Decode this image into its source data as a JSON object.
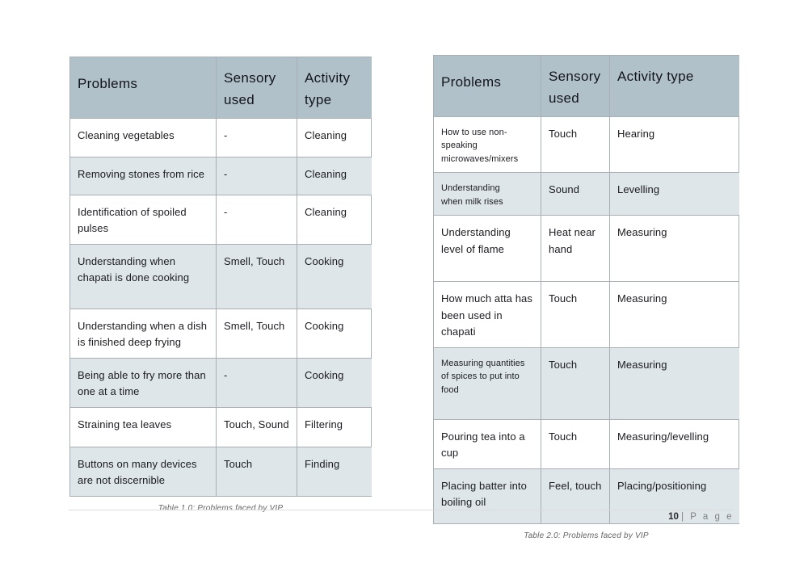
{
  "colors": {
    "header_bg": "#b0c1ca",
    "row_alt_bg": "#dee6ea",
    "table_border": "#a9b0b5",
    "caption_text": "#646464",
    "footer_gray": "#808080"
  },
  "tables": [
    {
      "caption": "Table 1.0: Problems faced by VIP",
      "headers": [
        "Problems",
        "Sensory\nused",
        "Activity\ntype"
      ],
      "rows": [
        [
          "Cleaning vegetables",
          "-",
          "Cleaning"
        ],
        [
          "Removing stones from rice",
          "-",
          "Cleaning"
        ],
        [
          "Identification of spoiled\npulses",
          "-",
          "Cleaning"
        ],
        [
          "Understanding when\nchapati is done cooking",
          "Smell, Touch",
          "Cooking"
        ],
        [
          "Understanding when a dish\nis finished deep frying",
          "Smell, Touch",
          "Cooking"
        ],
        [
          "Being able to fry more than\none at a time",
          "-",
          "Cooking"
        ],
        [
          "Straining tea leaves",
          "Touch, Sound",
          "Filtering"
        ],
        [
          "Buttons on many devices\nare not discernible",
          "Touch",
          "Finding"
        ]
      ]
    },
    {
      "caption": "Table 2.0: Problems faced by VIP",
      "headers": [
        "Problems",
        "Sensory\nused",
        "Activity type"
      ],
      "rows": [
        [
          "How to use non-\nspeaking\nmicrowaves/mixers",
          "Touch",
          "Hearing"
        ],
        [
          "Understanding\nwhen milk rises",
          "Sound",
          "Levelling"
        ],
        [
          "Understanding\nlevel of flame",
          "Heat near\nhand",
          "Measuring"
        ],
        [
          "How much atta has\nbeen used in\nchapati",
          "Touch",
          "Measuring"
        ],
        [
          "Measuring quantities\nof spices to put into\nfood",
          "Touch",
          "Measuring"
        ],
        [
          "Pouring tea into a\ncup",
          "Touch",
          "Measuring/levelling"
        ],
        [
          "Placing batter into\nboiling oil",
          "Feel, touch",
          "Placing/positioning"
        ]
      ]
    }
  ],
  "footer": {
    "page_number": "10",
    "page_label": "| P a g e"
  }
}
